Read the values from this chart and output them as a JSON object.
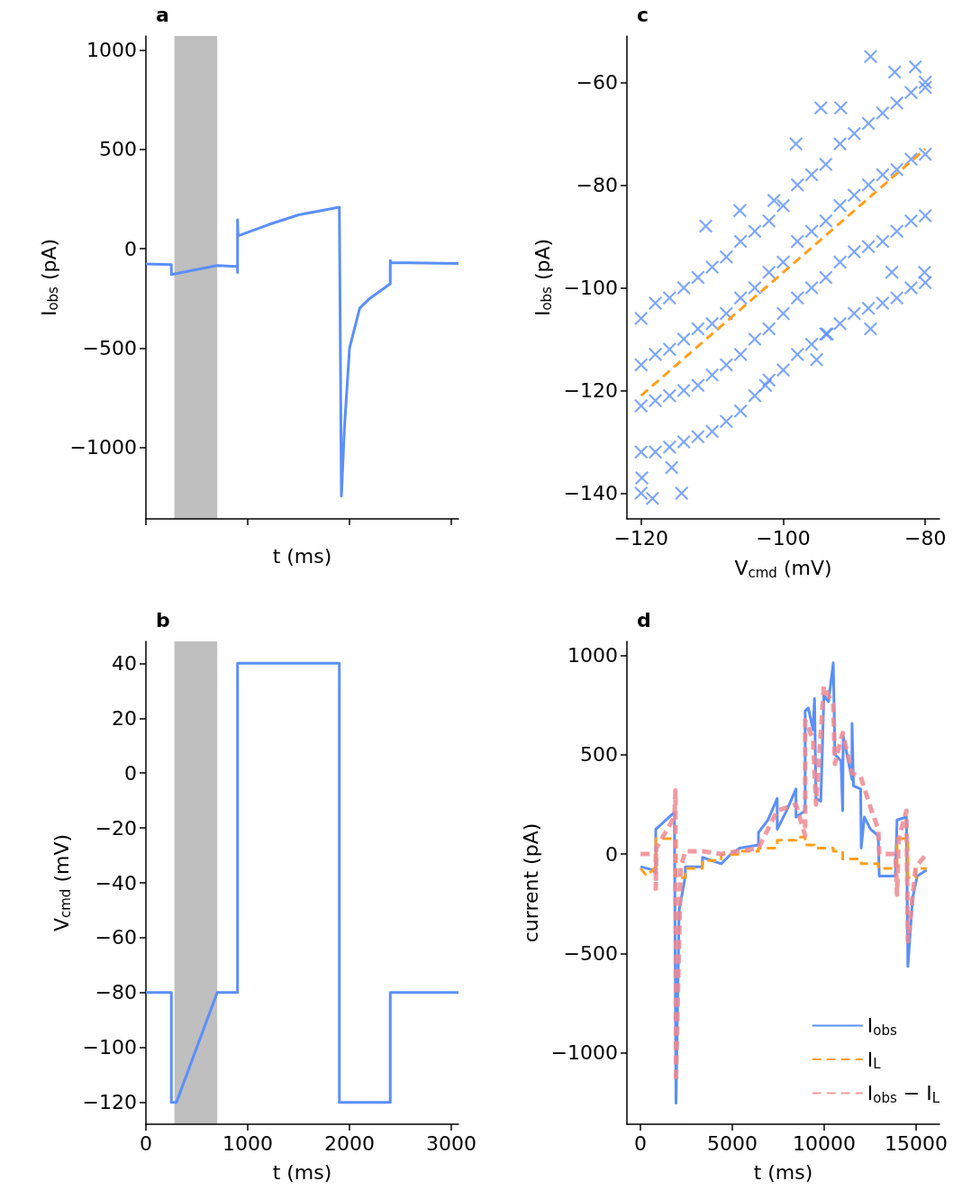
{
  "chart_data": [
    {
      "type": "line",
      "title": "a",
      "xlabel": "t (ms)",
      "ylabel": "I$_{obs}$ (pA)",
      "xlim": [
        0,
        3070
      ],
      "ylim": [
        -1360,
        1070
      ],
      "xticks": [
        {
          "value": 0,
          "label": null
        },
        {
          "value": 1000,
          "label": null
        },
        {
          "value": 2000,
          "label": null
        },
        {
          "value": 3000,
          "label": null
        }
      ],
      "yticks": [
        -1000,
        -500,
        0,
        500,
        1000
      ],
      "tick_labels": "y",
      "grid": false,
      "legend": false,
      "marker": "none",
      "bands": [
        {
          "axis": "x",
          "from": 280,
          "to": 700,
          "color": "#bfbfbf"
        }
      ],
      "series": [
        {
          "color": "#5b8ff9",
          "line_style": "solid",
          "x": [
            0,
            250,
            250,
            700,
            900,
            900,
            900,
            905,
            1200,
            1500,
            1900,
            1920,
            1950,
            2000,
            2100,
            2200,
            2400,
            2400,
            2410,
            3070
          ],
          "values": [
            -77,
            -80,
            -130,
            -85,
            -90,
            -120,
            145,
            64,
            120,
            170,
            209,
            -1245,
            -900,
            -500,
            -300,
            -250,
            -177,
            -60,
            -70,
            -75
          ]
        }
      ]
    },
    {
      "type": "scatter",
      "title": "c",
      "xlabel": "V$_{cmd}$ (mV)",
      "ylabel": "I$_{obs}$ (pA)",
      "xlim": [
        -122,
        -78
      ],
      "ylim": [
        -145,
        -51
      ],
      "xticks": [
        -120,
        -100,
        -80
      ],
      "yticks": [
        -140,
        -120,
        -100,
        -80,
        -60
      ],
      "grid": false,
      "legend": false,
      "marker": "cross",
      "series": [
        {
          "color": "#5b8ff9",
          "x": [
            -120,
            -120,
            -120,
            -120,
            -118,
            -118,
            -118,
            -118,
            -116,
            -116,
            -116,
            -116,
            -114,
            -114,
            -114,
            -114,
            -112,
            -112,
            -112,
            -112,
            -110,
            -110,
            -110,
            -110,
            -108,
            -108,
            -108,
            -108,
            -106,
            -106,
            -106,
            -106,
            -104,
            -104,
            -104,
            -104,
            -102,
            -102,
            -102,
            -102,
            -100,
            -100,
            -100,
            -100,
            -98,
            -98,
            -98,
            -98,
            -96,
            -96,
            -96,
            -96,
            -94,
            -94,
            -94,
            -94,
            -92,
            -92,
            -92,
            -92,
            -90,
            -90,
            -90,
            -90,
            -88,
            -88,
            -88,
            -88,
            -86,
            -86,
            -86,
            -86,
            -84,
            -84,
            -84,
            -84,
            -82,
            -82,
            -82,
            -82,
            -80,
            -80,
            -80,
            -80,
            -87.7,
            -81.4,
            -94.7,
            -91.9,
            -80.1,
            -87.7,
            -93.8,
            -95.3,
            -114.3,
            -118.4,
            -120,
            -110.9,
            -106.1,
            -101.3,
            -98.2,
            -84.3,
            -80,
            -119.9,
            -115.7,
            -102.5,
            -84.7
          ],
          "values": [
            -106,
            -115,
            -123,
            -132,
            -103,
            -113,
            -122,
            -132,
            -102,
            -112,
            -121,
            -131,
            -100,
            -110,
            -120,
            -130,
            -98,
            -108,
            -119,
            -129,
            -96,
            -107,
            -117,
            -128,
            -94,
            -105,
            -115,
            -126,
            -91,
            -102,
            -113,
            -124,
            -89,
            -100,
            -110,
            -121,
            -87,
            -97,
            -108,
            -118,
            -84,
            -95,
            -105,
            -116,
            -80,
            -91,
            -102,
            -113,
            -78,
            -89,
            -100,
            -111,
            -76,
            -87,
            -98,
            -109,
            -72,
            -84,
            -95,
            -107,
            -70,
            -82,
            -93,
            -105,
            -68,
            -80,
            -92,
            -104,
            -66,
            -78,
            -91,
            -103,
            -64,
            -77,
            -89,
            -102,
            -62,
            -75,
            -87,
            -100,
            -61,
            -74,
            -86,
            -99,
            -55,
            -57,
            -65,
            -65,
            -97,
            -108,
            -109,
            -114,
            -140,
            -141,
            -140,
            -88,
            -85,
            -83,
            -72,
            -58,
            -60,
            -137,
            -135,
            -119,
            -97
          ]
        },
        {
          "type": "line",
          "marker": "none",
          "color": "#ff9f1c",
          "line_style": "dashed",
          "x": [
            -120,
            -80
          ],
          "values": [
            -121,
            -73
          ]
        }
      ]
    },
    {
      "type": "line",
      "title": "b",
      "xlabel": "t (ms)",
      "ylabel": "V$_{cmd}$ (mV)",
      "xlim": [
        0,
        3070
      ],
      "ylim": [
        -128,
        48
      ],
      "xticks": [
        0,
        1000,
        2000,
        3000
      ],
      "yticks": [
        -120,
        -100,
        -80,
        -60,
        -40,
        -20,
        0,
        20,
        40
      ],
      "grid": false,
      "legend": false,
      "marker": "none",
      "bands": [
        {
          "axis": "x",
          "from": 280,
          "to": 700,
          "color": "#bfbfbf"
        }
      ],
      "series": [
        {
          "color": "#5b8ff9",
          "line_style": "solid",
          "x": [
            0,
            250,
            250,
            300,
            700,
            900,
            900,
            1900,
            1900,
            2400,
            2400,
            3070
          ],
          "values": [
            -80,
            -80,
            -120,
            -120,
            -80,
            -80,
            40,
            40,
            -120,
            -120,
            -80,
            -80
          ]
        }
      ]
    },
    {
      "type": "line",
      "title": "d",
      "xlabel": "t (ms)",
      "ylabel": "current (pA)",
      "xlim": [
        -740,
        16270
      ],
      "ylim": [
        -1360,
        1070
      ],
      "xticks": [
        0,
        5000,
        10000,
        15000
      ],
      "yticks": [
        -1000,
        -500,
        0,
        500,
        1000
      ],
      "grid": false,
      "legend": "bottom right",
      "marker": "none",
      "series": [
        {
          "name": "I$_{obs}$",
          "color": "#5b8ff9",
          "line_style": "solid",
          "x": [
            0,
            660,
            830,
            830,
            1846,
            1931,
            2100,
            2440,
            2440,
            3370,
            3370,
            4390,
            4900,
            5400,
            6420,
            6420,
            6930,
            7440,
            7440,
            7950,
            8460,
            8460,
            8960,
            8960,
            9130,
            9390,
            9470,
            9550,
            9810,
            9980,
            10230,
            10490,
            10580,
            10910,
            11000,
            11030,
            11510,
            11510,
            11590,
            11980,
            12010,
            12180,
            12520,
            12940,
            12990,
            13870,
            13960,
            14470,
            14550,
            14810,
            15060,
            15570
          ],
          "values": [
            -64,
            -80,
            -95,
            124,
            210,
            -1255,
            -284,
            -111,
            -64,
            -64,
            -17,
            -49,
            -2,
            30,
            45,
            108,
            171,
            280,
            124,
            218,
            327,
            186,
            218,
            719,
            735,
            625,
            782,
            280,
            265,
            798,
            767,
            962,
            500,
            469,
            218,
            594,
            375,
            657,
            343,
            327,
            30,
            186,
            124,
            92,
            -111,
            -111,
            171,
            186,
            -566,
            -221,
            -111,
            -80
          ]
        },
        {
          "name": "I$_{L}$",
          "color": "#ff9f1c",
          "line_style": "dashed",
          "x": [
            0,
            340,
            830,
            830,
            1931,
            1931,
            2440,
            2440,
            3370,
            3370,
            4390,
            4390,
            5400,
            5400,
            6420,
            6420,
            7440,
            7440,
            8460,
            8460,
            8960,
            8960,
            9470,
            9470,
            10490,
            10490,
            11000,
            11000,
            12010,
            12010,
            12940,
            12940,
            13960,
            13960,
            14550,
            14550,
            14980,
            14980,
            15570
          ],
          "values": [
            -72,
            -111,
            -64,
            77,
            77,
            -119,
            -119,
            -72,
            -72,
            -33,
            -33,
            -2,
            -2,
            14,
            14,
            30,
            30,
            69,
            69,
            85,
            85,
            45,
            45,
            30,
            30,
            14,
            14,
            -25,
            -25,
            -49,
            -49,
            -72,
            -72,
            77,
            77,
            -119,
            -119,
            -72,
            -72
          ]
        },
        {
          "name": "I$_{obs}$ − I$_{L}$",
          "color": "#ee8a92",
          "line_style": "dashed",
          "x": [
            0,
            830,
            830,
            860,
            1846,
            1900,
            1931,
            2190,
            2440,
            3370,
            4390,
            6420,
            7440,
            8460,
            8960,
            8960,
            9390,
            9550,
            9980,
            10490,
            10580,
            11000,
            11510,
            11980,
            12520,
            12940,
            12990,
            13870,
            13960,
            14050,
            14470,
            14550,
            14980,
            15570
          ],
          "values": [
            0,
            0,
            -174,
            30,
            186,
            320,
            -1145,
            -64,
            14,
            14,
            0,
            30,
            218,
            249,
            92,
            672,
            578,
            249,
            845,
            751,
            453,
            610,
            406,
            390,
            233,
            124,
            0,
            0,
            -205,
            77,
            218,
            -440,
            -64,
            0
          ]
        }
      ]
    }
  ]
}
